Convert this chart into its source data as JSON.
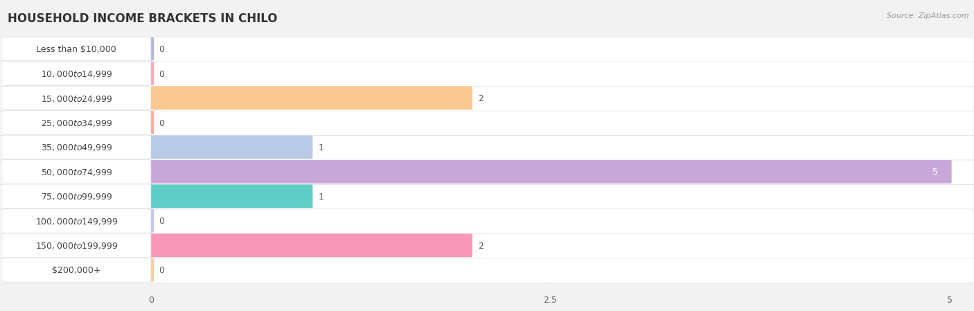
{
  "title": "HOUSEHOLD INCOME BRACKETS IN CHILO",
  "source": "Source: ZipAtlas.com",
  "categories": [
    "Less than $10,000",
    "$10,000 to $14,999",
    "$15,000 to $24,999",
    "$25,000 to $34,999",
    "$35,000 to $49,999",
    "$50,000 to $74,999",
    "$75,000 to $99,999",
    "$100,000 to $149,999",
    "$150,000 to $199,999",
    "$200,000+"
  ],
  "values": [
    0,
    0,
    2,
    0,
    1,
    5,
    1,
    0,
    2,
    0
  ],
  "bar_colors": [
    "#b0b8dc",
    "#f7a8b8",
    "#f9c890",
    "#f7aca0",
    "#b8cce8",
    "#c8a8d8",
    "#5ecec6",
    "#c0c8ec",
    "#f998b8",
    "#f9ccA0"
  ],
  "row_bg": "#f7f7f7",
  "row_border": "#e8e8e8",
  "pill_bg": "white",
  "pill_border": "#e0e0e0",
  "xlim": [
    0,
    5
  ],
  "xticks": [
    0,
    2.5,
    5
  ],
  "fig_bg": "#f2f2f2",
  "title_fontsize": 12,
  "label_fontsize": 9,
  "value_fontsize": 9,
  "source_fontsize": 8
}
